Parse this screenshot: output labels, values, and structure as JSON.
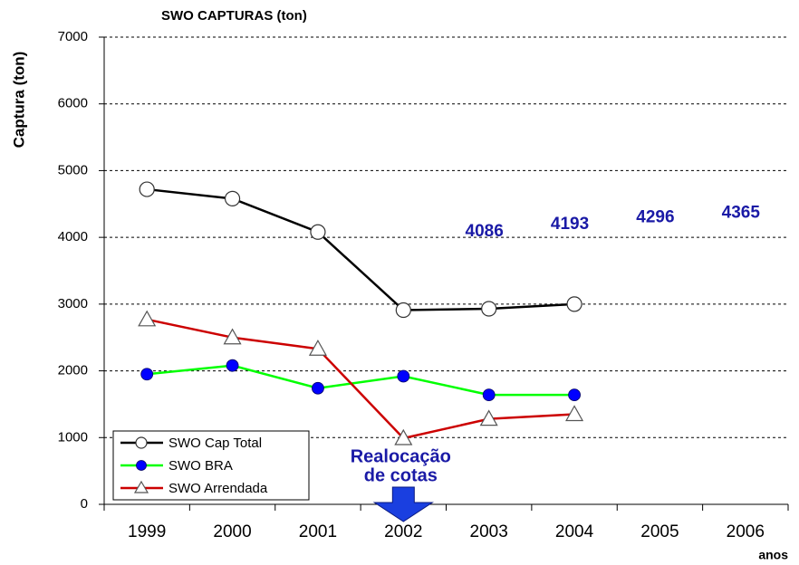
{
  "chart_data": {
    "type": "line",
    "title": "SWO CAPTURAS (ton)",
    "y_label": "Captura (ton)",
    "x_label": "anos",
    "categories": [
      "1999",
      "2000",
      "2001",
      "2002",
      "2003",
      "2004",
      "2005",
      "2006"
    ],
    "series": [
      {
        "name": "SWO Cap Total",
        "color": "#000000",
        "marker": "open-circle",
        "values": [
          4720,
          4580,
          4080,
          2910,
          2930,
          3000,
          null,
          null
        ]
      },
      {
        "name": "SWO BRA",
        "color": "#00ff00",
        "marker": "blue-dot",
        "values": [
          1950,
          2080,
          1740,
          1920,
          1640,
          1640,
          null,
          null
        ]
      },
      {
        "name": "SWO Arrendada",
        "color": "#cc0000",
        "marker": "open-triangle",
        "values": [
          2770,
          2500,
          2330,
          990,
          1280,
          1350,
          null,
          null
        ]
      }
    ],
    "annotations": [
      {
        "category": "2003",
        "value": 4086
      },
      {
        "category": "2004",
        "value": 4193
      },
      {
        "category": "2005",
        "value": 4296
      },
      {
        "category": "2006",
        "value": 4365
      }
    ],
    "callout": {
      "category": "2002",
      "lines": [
        "Realocação",
        "de cotas"
      ]
    },
    "ylim": [
      0,
      7000
    ],
    "yticks": [
      0,
      1000,
      2000,
      3000,
      4000,
      5000,
      6000,
      7000
    ],
    "grid": true,
    "legend": "bottom-left"
  }
}
